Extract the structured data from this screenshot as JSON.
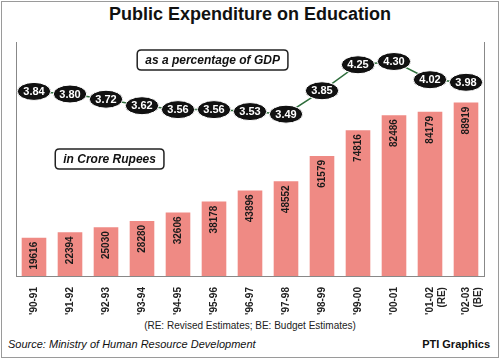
{
  "chart_data": {
    "type": "bar",
    "title": "Public Expenditure on Education",
    "categories": [
      "'90-91",
      "'91-92",
      "'92-93",
      "'93-94",
      "'94-95",
      "'95-96",
      "'96-97",
      "'97-98",
      "'98-99",
      "'99-00",
      "'00-01",
      [
        "'01-02",
        "(RE)"
      ],
      [
        "'02-03",
        "(BE)"
      ]
    ],
    "series": [
      {
        "name": "in Crore Rupees",
        "type": "bar",
        "color": "#ef8a84",
        "values": [
          19616,
          22394,
          25030,
          28280,
          32606,
          38178,
          43896,
          48552,
          61579,
          74816,
          82486,
          84179,
          88919
        ]
      },
      {
        "name": "as a percentage of GDP",
        "type": "line",
        "axis": "y2",
        "color": "#2f6e3c",
        "values": [
          3.84,
          3.8,
          3.72,
          3.62,
          3.56,
          3.56,
          3.53,
          3.49,
          3.85,
          4.25,
          4.3,
          4.02,
          3.98
        ],
        "value_labels": [
          "3.84",
          "3.80",
          "3.72",
          "3.62",
          "3.56",
          "3.56",
          "3.53",
          "3.49",
          "3.85",
          "4.25",
          "4.30",
          "4.02",
          "3.98"
        ]
      }
    ],
    "ylim": [
      0,
      120000
    ],
    "y2lim": [
      1,
      4.6
    ],
    "tick_labels": "x",
    "grid": false,
    "data_labels": true,
    "note": "(RE: Revised Estimates; BE: Budget Estimates)",
    "source": "Source: Ministry of Human Resource Development",
    "credit": "PTI Graphics"
  }
}
